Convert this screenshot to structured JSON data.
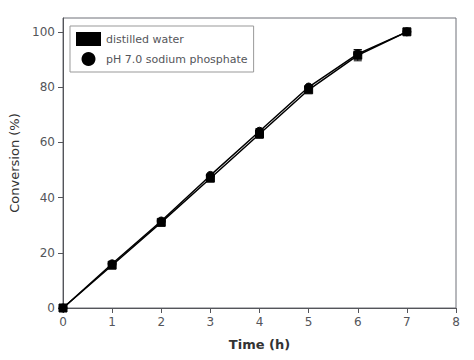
{
  "chart_data": {
    "type": "line",
    "xlabel": "Time (h)",
    "ylabel": "Conversion (%)",
    "xlim": [
      0,
      8
    ],
    "ylim": [
      0,
      105
    ],
    "xticks": [
      0,
      1,
      2,
      3,
      4,
      5,
      6,
      7,
      8
    ],
    "yticks": [
      0,
      20,
      40,
      60,
      80,
      100
    ],
    "grid": false,
    "legend": "upper left",
    "series": [
      {
        "name": "distilled water",
        "color": "#000000",
        "marker": "square",
        "x": [
          0,
          1,
          2,
          3,
          4,
          5,
          6,
          7
        ],
        "values": [
          0,
          15.5,
          31.0,
          47.0,
          63.0,
          79.0,
          91.5,
          100.0
        ],
        "errors": [
          0,
          0,
          0,
          0,
          1.5,
          0,
          2.0,
          0
        ]
      },
      {
        "name": "pH 7.0 sodium phosphate",
        "color": "#000000",
        "marker": "circle",
        "x": [
          0,
          1,
          2,
          3,
          4,
          5,
          6,
          7
        ],
        "values": [
          0,
          16.0,
          31.5,
          48.0,
          64.0,
          80.0,
          92.0,
          100.0
        ],
        "errors": [
          0,
          0,
          0,
          0,
          1.0,
          0,
          1.5,
          0
        ]
      }
    ]
  }
}
